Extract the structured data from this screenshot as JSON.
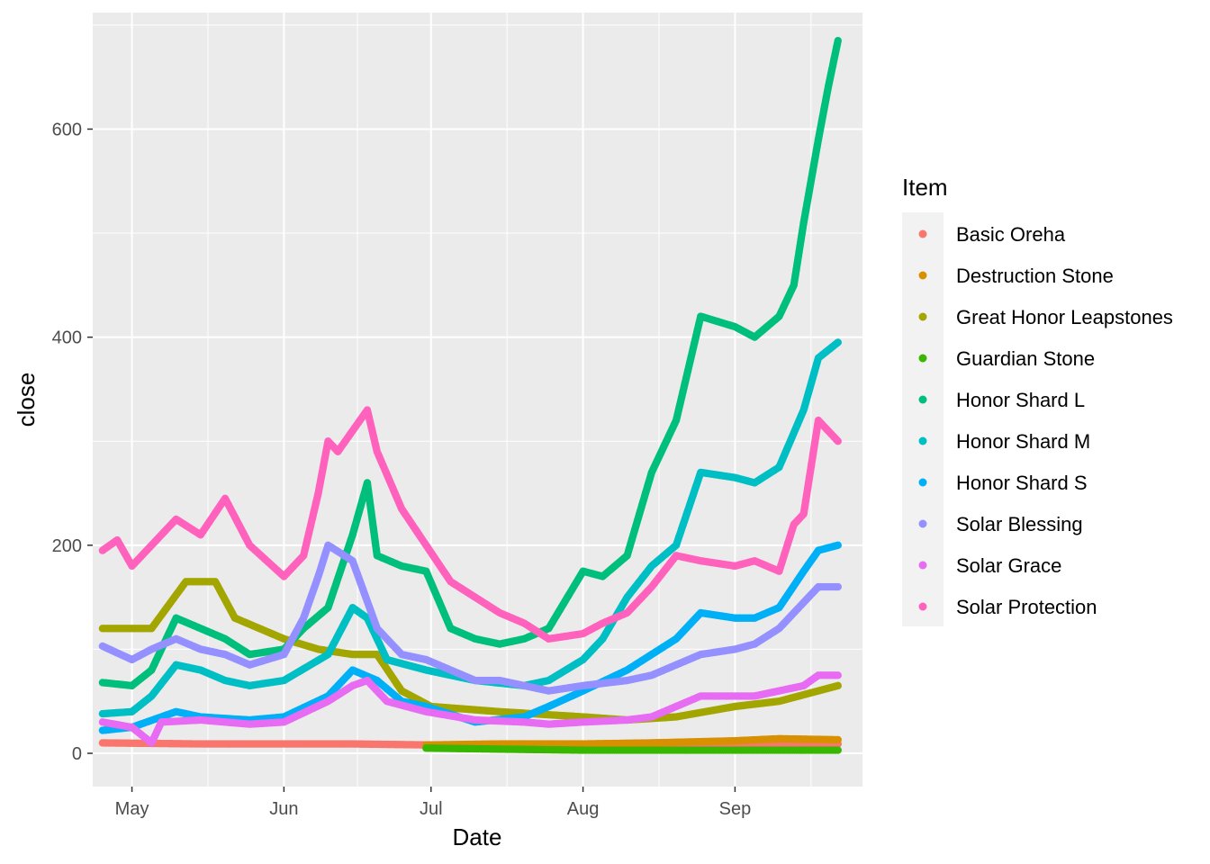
{
  "chart_data": {
    "type": "scatter",
    "xlabel": "Date",
    "ylabel": "close",
    "x_range": [
      "2022-04-23",
      "2022-09-27"
    ],
    "ylim": [
      -32,
      712
    ],
    "x_ticks": [
      {
        "date": "2022-05-01",
        "label": "May"
      },
      {
        "date": "2022-06-01",
        "label": "Jun"
      },
      {
        "date": "2022-07-01",
        "label": "Jul"
      },
      {
        "date": "2022-08-01",
        "label": "Aug"
      },
      {
        "date": "2022-09-01",
        "label": "Sep"
      }
    ],
    "y_ticks": [
      0,
      200,
      400,
      600
    ],
    "grid": true,
    "legend": {
      "title": "Item",
      "position": "right"
    },
    "series": [
      {
        "name": "Basic Oreha",
        "color": "#F8766D",
        "points": [
          [
            "2022-04-25",
            10
          ],
          [
            "2022-05-15",
            9
          ],
          [
            "2022-06-15",
            9
          ],
          [
            "2022-07-01",
            8
          ],
          [
            "2022-08-01",
            8
          ],
          [
            "2022-08-15",
            10
          ],
          [
            "2022-09-01",
            10
          ],
          [
            "2022-09-22",
            9
          ]
        ]
      },
      {
        "name": "Destruction Stone",
        "color": "#D89000",
        "points": [
          [
            "2022-06-30",
            8
          ],
          [
            "2022-07-15",
            9
          ],
          [
            "2022-08-01",
            9
          ],
          [
            "2022-08-15",
            10
          ],
          [
            "2022-09-01",
            12
          ],
          [
            "2022-09-10",
            14
          ],
          [
            "2022-09-22",
            13
          ]
        ]
      },
      {
        "name": "Great Honor Leapstones",
        "color": "#A3A500",
        "points": [
          [
            "2022-04-25",
            120
          ],
          [
            "2022-05-05",
            120
          ],
          [
            "2022-05-12",
            165
          ],
          [
            "2022-05-18",
            165
          ],
          [
            "2022-05-22",
            130
          ],
          [
            "2022-06-01",
            110
          ],
          [
            "2022-06-08",
            100
          ],
          [
            "2022-06-15",
            95
          ],
          [
            "2022-06-20",
            95
          ],
          [
            "2022-06-25",
            60
          ],
          [
            "2022-07-01",
            45
          ],
          [
            "2022-07-15",
            40
          ],
          [
            "2022-08-01",
            35
          ],
          [
            "2022-08-10",
            32
          ],
          [
            "2022-08-20",
            35
          ],
          [
            "2022-09-01",
            45
          ],
          [
            "2022-09-10",
            50
          ],
          [
            "2022-09-22",
            65
          ]
        ]
      },
      {
        "name": "Guardian Stone",
        "color": "#39B600",
        "points": [
          [
            "2022-06-30",
            5
          ],
          [
            "2022-07-15",
            4
          ],
          [
            "2022-08-01",
            3
          ],
          [
            "2022-08-15",
            3
          ],
          [
            "2022-09-01",
            3
          ],
          [
            "2022-09-22",
            3
          ]
        ]
      },
      {
        "name": "Honor Shard L",
        "color": "#00BF7D",
        "points": [
          [
            "2022-04-25",
            68
          ],
          [
            "2022-05-01",
            65
          ],
          [
            "2022-05-05",
            80
          ],
          [
            "2022-05-10",
            130
          ],
          [
            "2022-05-15",
            120
          ],
          [
            "2022-05-20",
            110
          ],
          [
            "2022-05-25",
            95
          ],
          [
            "2022-06-01",
            100
          ],
          [
            "2022-06-05",
            120
          ],
          [
            "2022-06-10",
            140
          ],
          [
            "2022-06-15",
            210
          ],
          [
            "2022-06-18",
            260
          ],
          [
            "2022-06-20",
            190
          ],
          [
            "2022-06-25",
            180
          ],
          [
            "2022-06-30",
            175
          ],
          [
            "2022-07-05",
            120
          ],
          [
            "2022-07-10",
            110
          ],
          [
            "2022-07-15",
            105
          ],
          [
            "2022-07-20",
            110
          ],
          [
            "2022-07-25",
            120
          ],
          [
            "2022-08-01",
            175
          ],
          [
            "2022-08-05",
            170
          ],
          [
            "2022-08-10",
            190
          ],
          [
            "2022-08-15",
            270
          ],
          [
            "2022-08-20",
            320
          ],
          [
            "2022-08-25",
            420
          ],
          [
            "2022-09-01",
            410
          ],
          [
            "2022-09-05",
            400
          ],
          [
            "2022-09-10",
            420
          ],
          [
            "2022-09-13",
            450
          ],
          [
            "2022-09-15",
            510
          ],
          [
            "2022-09-18",
            590
          ],
          [
            "2022-09-20",
            640
          ],
          [
            "2022-09-22",
            685
          ]
        ]
      },
      {
        "name": "Honor Shard M",
        "color": "#00BFC4",
        "points": [
          [
            "2022-04-25",
            38
          ],
          [
            "2022-05-01",
            40
          ],
          [
            "2022-05-05",
            55
          ],
          [
            "2022-05-10",
            85
          ],
          [
            "2022-05-15",
            80
          ],
          [
            "2022-05-20",
            70
          ],
          [
            "2022-05-25",
            65
          ],
          [
            "2022-06-01",
            70
          ],
          [
            "2022-06-10",
            95
          ],
          [
            "2022-06-15",
            140
          ],
          [
            "2022-06-18",
            130
          ],
          [
            "2022-06-22",
            90
          ],
          [
            "2022-06-30",
            80
          ],
          [
            "2022-07-10",
            70
          ],
          [
            "2022-07-20",
            65
          ],
          [
            "2022-07-25",
            70
          ],
          [
            "2022-08-01",
            90
          ],
          [
            "2022-08-05",
            110
          ],
          [
            "2022-08-10",
            150
          ],
          [
            "2022-08-15",
            180
          ],
          [
            "2022-08-20",
            200
          ],
          [
            "2022-08-25",
            270
          ],
          [
            "2022-09-01",
            265
          ],
          [
            "2022-09-05",
            260
          ],
          [
            "2022-09-10",
            275
          ],
          [
            "2022-09-15",
            330
          ],
          [
            "2022-09-18",
            380
          ],
          [
            "2022-09-22",
            395
          ]
        ]
      },
      {
        "name": "Honor Shard S",
        "color": "#00B0F6",
        "points": [
          [
            "2022-04-25",
            22
          ],
          [
            "2022-05-01",
            25
          ],
          [
            "2022-05-10",
            40
          ],
          [
            "2022-05-15",
            35
          ],
          [
            "2022-05-25",
            32
          ],
          [
            "2022-06-01",
            35
          ],
          [
            "2022-06-10",
            55
          ],
          [
            "2022-06-15",
            80
          ],
          [
            "2022-06-20",
            70
          ],
          [
            "2022-06-25",
            50
          ],
          [
            "2022-06-30",
            45
          ],
          [
            "2022-07-10",
            30
          ],
          [
            "2022-07-20",
            35
          ],
          [
            "2022-07-25",
            45
          ],
          [
            "2022-08-01",
            60
          ],
          [
            "2022-08-10",
            80
          ],
          [
            "2022-08-15",
            95
          ],
          [
            "2022-08-20",
            110
          ],
          [
            "2022-08-25",
            135
          ],
          [
            "2022-09-01",
            130
          ],
          [
            "2022-09-05",
            130
          ],
          [
            "2022-09-10",
            140
          ],
          [
            "2022-09-15",
            175
          ],
          [
            "2022-09-18",
            195
          ],
          [
            "2022-09-22",
            200
          ]
        ]
      },
      {
        "name": "Solar Blessing",
        "color": "#9590FF",
        "points": [
          [
            "2022-04-25",
            103
          ],
          [
            "2022-05-01",
            90
          ],
          [
            "2022-05-05",
            100
          ],
          [
            "2022-05-10",
            110
          ],
          [
            "2022-05-15",
            100
          ],
          [
            "2022-05-20",
            95
          ],
          [
            "2022-05-25",
            85
          ],
          [
            "2022-06-01",
            95
          ],
          [
            "2022-06-05",
            130
          ],
          [
            "2022-06-08",
            170
          ],
          [
            "2022-06-10",
            200
          ],
          [
            "2022-06-15",
            185
          ],
          [
            "2022-06-20",
            120
          ],
          [
            "2022-06-25",
            95
          ],
          [
            "2022-06-30",
            90
          ],
          [
            "2022-07-05",
            80
          ],
          [
            "2022-07-10",
            70
          ],
          [
            "2022-07-15",
            70
          ],
          [
            "2022-07-20",
            65
          ],
          [
            "2022-07-25",
            60
          ],
          [
            "2022-08-01",
            65
          ],
          [
            "2022-08-10",
            70
          ],
          [
            "2022-08-15",
            75
          ],
          [
            "2022-08-20",
            85
          ],
          [
            "2022-08-25",
            95
          ],
          [
            "2022-09-01",
            100
          ],
          [
            "2022-09-05",
            105
          ],
          [
            "2022-09-10",
            120
          ],
          [
            "2022-09-15",
            145
          ],
          [
            "2022-09-18",
            160
          ],
          [
            "2022-09-22",
            160
          ]
        ]
      },
      {
        "name": "Solar Grace",
        "color": "#E76BF3",
        "points": [
          [
            "2022-04-25",
            30
          ],
          [
            "2022-05-01",
            25
          ],
          [
            "2022-05-05",
            10
          ],
          [
            "2022-05-07",
            30
          ],
          [
            "2022-05-15",
            32
          ],
          [
            "2022-05-25",
            28
          ],
          [
            "2022-06-01",
            30
          ],
          [
            "2022-06-10",
            50
          ],
          [
            "2022-06-15",
            65
          ],
          [
            "2022-06-18",
            70
          ],
          [
            "2022-06-22",
            50
          ],
          [
            "2022-06-30",
            40
          ],
          [
            "2022-07-10",
            32
          ],
          [
            "2022-07-20",
            30
          ],
          [
            "2022-07-25",
            28
          ],
          [
            "2022-08-01",
            30
          ],
          [
            "2022-08-10",
            32
          ],
          [
            "2022-08-15",
            35
          ],
          [
            "2022-08-20",
            45
          ],
          [
            "2022-08-25",
            55
          ],
          [
            "2022-09-01",
            55
          ],
          [
            "2022-09-05",
            55
          ],
          [
            "2022-09-10",
            60
          ],
          [
            "2022-09-15",
            65
          ],
          [
            "2022-09-18",
            75
          ],
          [
            "2022-09-22",
            75
          ]
        ]
      },
      {
        "name": "Solar Protection",
        "color": "#FF62BC",
        "points": [
          [
            "2022-04-25",
            195
          ],
          [
            "2022-04-28",
            205
          ],
          [
            "2022-05-01",
            180
          ],
          [
            "2022-05-05",
            200
          ],
          [
            "2022-05-10",
            225
          ],
          [
            "2022-05-15",
            210
          ],
          [
            "2022-05-20",
            245
          ],
          [
            "2022-05-25",
            200
          ],
          [
            "2022-06-01",
            170
          ],
          [
            "2022-06-05",
            190
          ],
          [
            "2022-06-08",
            250
          ],
          [
            "2022-06-10",
            300
          ],
          [
            "2022-06-12",
            290
          ],
          [
            "2022-06-15",
            310
          ],
          [
            "2022-06-18",
            330
          ],
          [
            "2022-06-20",
            290
          ],
          [
            "2022-06-25",
            235
          ],
          [
            "2022-06-30",
            200
          ],
          [
            "2022-07-05",
            165
          ],
          [
            "2022-07-10",
            150
          ],
          [
            "2022-07-15",
            135
          ],
          [
            "2022-07-20",
            125
          ],
          [
            "2022-07-25",
            110
          ],
          [
            "2022-08-01",
            115
          ],
          [
            "2022-08-05",
            125
          ],
          [
            "2022-08-10",
            135
          ],
          [
            "2022-08-15",
            160
          ],
          [
            "2022-08-20",
            190
          ],
          [
            "2022-08-25",
            185
          ],
          [
            "2022-09-01",
            180
          ],
          [
            "2022-09-05",
            185
          ],
          [
            "2022-09-10",
            175
          ],
          [
            "2022-09-13",
            220
          ],
          [
            "2022-09-15",
            230
          ],
          [
            "2022-09-18",
            320
          ],
          [
            "2022-09-22",
            300
          ]
        ]
      }
    ]
  }
}
